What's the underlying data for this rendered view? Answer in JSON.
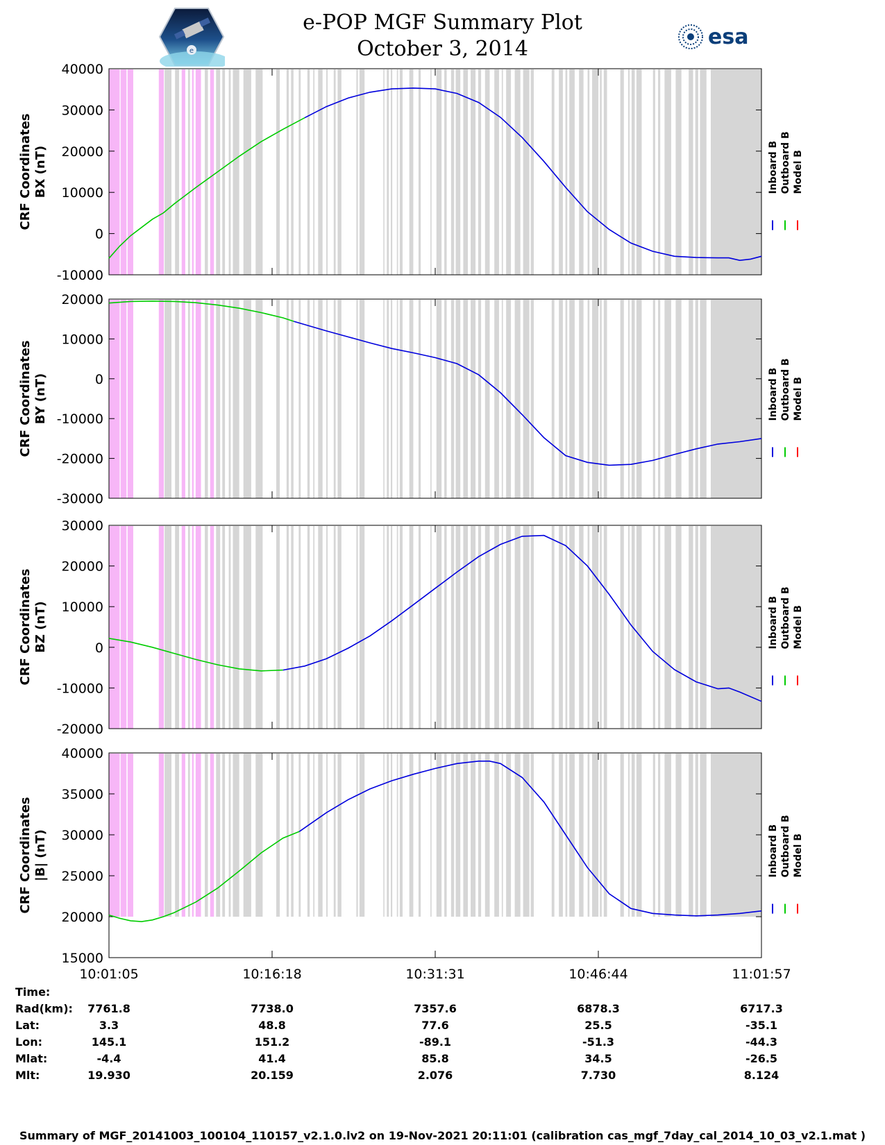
{
  "header": {
    "title_line1": "e-POP MGF Summary Plot",
    "title_line2": "October 3, 2014",
    "left_logo": "epop-cassiope-satellite-logo",
    "right_logo": "esa-logo",
    "right_logo_text": "esa"
  },
  "colors": {
    "inboard": "#0000dd",
    "outboard": "#00cc00",
    "model": "#ff0000",
    "magenta_band": "#f7b6f7",
    "gray_band": "#d6d6d6"
  },
  "chart_data": [
    {
      "type": "line",
      "id": "bx",
      "ylabel": [
        "CRF Coordinates",
        "BX (nT)"
      ],
      "ylim": [
        -10000,
        40000
      ],
      "yticks": [
        -10000,
        0,
        10000,
        20000,
        30000,
        40000
      ],
      "legend": [
        "Inboard B",
        "Outboard B",
        "Model B"
      ],
      "xlim_minutes": [
        0,
        60
      ],
      "series": [
        {
          "name": "Outboard B",
          "x": [
            0,
            1,
            2,
            3,
            4,
            5,
            6,
            8,
            10,
            12,
            14,
            16,
            18
          ],
          "values": [
            -6000,
            -3000,
            -500,
            1500,
            3500,
            5000,
            7200,
            11200,
            15000,
            18800,
            22300,
            25300,
            28100
          ]
        },
        {
          "name": "Inboard B",
          "x": [
            18,
            20,
            22,
            24,
            26,
            28,
            30,
            32,
            34,
            36,
            38,
            40,
            42,
            44,
            46,
            48,
            50,
            52,
            54,
            56,
            57,
            58,
            59,
            60
          ],
          "values": [
            28100,
            30800,
            32900,
            34300,
            35100,
            35300,
            35100,
            34000,
            31800,
            28200,
            23300,
            17500,
            11200,
            5300,
            1000,
            -2300,
            -4300,
            -5500,
            -5800,
            -5900,
            -5900,
            -6500,
            -6200,
            -5500
          ]
        }
      ]
    },
    {
      "type": "line",
      "id": "by",
      "ylabel": [
        "CRF Coordinates",
        "BY (nT)"
      ],
      "ylim": [
        -30000,
        20000
      ],
      "yticks": [
        -30000,
        -20000,
        -10000,
        0,
        10000,
        20000
      ],
      "legend": [
        "Inboard B",
        "Outboard B",
        "Model B"
      ],
      "xlim_minutes": [
        0,
        60
      ],
      "series": [
        {
          "name": "Outboard B",
          "x": [
            0,
            2,
            4,
            6,
            8,
            10,
            12,
            14,
            16,
            17
          ],
          "values": [
            19000,
            19400,
            19500,
            19400,
            19100,
            18500,
            17700,
            16600,
            15300,
            14400
          ]
        },
        {
          "name": "Inboard B",
          "x": [
            17,
            20,
            22,
            24,
            26,
            28,
            30,
            32,
            34,
            36,
            38,
            40,
            42,
            44,
            46,
            48,
            50,
            52,
            54,
            56,
            58,
            60
          ],
          "values": [
            14400,
            12000,
            10500,
            9000,
            7600,
            6500,
            5300,
            3800,
            1000,
            -3500,
            -9000,
            -14800,
            -19300,
            -21000,
            -21700,
            -21500,
            -20500,
            -19000,
            -17600,
            -16400,
            -15800,
            -15000
          ]
        }
      ]
    },
    {
      "type": "line",
      "id": "bz",
      "ylabel": [
        "CRF Coordinates",
        "BZ (nT)"
      ],
      "ylim": [
        -20000,
        30000
      ],
      "yticks": [
        -20000,
        -10000,
        0,
        10000,
        20000,
        30000
      ],
      "legend": [
        "Inboard B",
        "Outboard B",
        "Model B"
      ],
      "xlim_minutes": [
        0,
        60
      ],
      "series": [
        {
          "name": "Outboard B",
          "x": [
            0,
            2,
            4,
            6,
            8,
            10,
            12,
            14,
            16
          ],
          "values": [
            2200,
            1300,
            0,
            -1500,
            -3000,
            -4300,
            -5300,
            -5800,
            -5600
          ]
        },
        {
          "name": "Inboard B",
          "x": [
            16,
            18,
            20,
            22,
            24,
            26,
            28,
            30,
            32,
            34,
            36,
            38,
            40,
            42,
            44,
            46,
            48,
            50,
            52,
            54,
            56,
            57,
            58,
            60
          ],
          "values": [
            -5600,
            -4600,
            -2800,
            -200,
            2800,
            6500,
            10500,
            14500,
            18500,
            22300,
            25300,
            27300,
            27500,
            25000,
            20000,
            13000,
            5500,
            -1000,
            -5500,
            -8500,
            -10200,
            -10000,
            -11000,
            -13300
          ]
        }
      ]
    },
    {
      "type": "line",
      "id": "b-magnitude",
      "ylabel": [
        "CRF Coordinates",
        "|B| (nT)"
      ],
      "ylim": [
        15000,
        40000
      ],
      "yticks": [
        15000,
        20000,
        25000,
        30000,
        35000,
        40000
      ],
      "legend": [
        "Inboard B",
        "Outboard B",
        "Model B"
      ],
      "xlim_minutes": [
        0,
        60
      ],
      "series": [
        {
          "name": "Outboard B",
          "x": [
            0,
            1,
            2,
            3,
            4,
            5,
            6,
            8,
            10,
            12,
            14,
            16,
            17.5
          ],
          "values": [
            20200,
            19800,
            19500,
            19400,
            19600,
            20000,
            20500,
            21800,
            23500,
            25600,
            27800,
            29600,
            30400
          ]
        },
        {
          "name": "Inboard B",
          "x": [
            17.5,
            20,
            22,
            24,
            26,
            28,
            30,
            32,
            34,
            35,
            36,
            38,
            40,
            42,
            44,
            46,
            48,
            50,
            52,
            54,
            56,
            58,
            60
          ],
          "values": [
            30400,
            32700,
            34300,
            35600,
            36600,
            37400,
            38100,
            38700,
            39000,
            39000,
            38700,
            37000,
            34000,
            30000,
            26000,
            22800,
            21000,
            20400,
            20200,
            20100,
            20200,
            20400,
            20700
          ]
        }
      ]
    }
  ],
  "x_axis": {
    "ticks": [
      "10:01:05",
      "10:16:18",
      "10:31:31",
      "10:46:44",
      "11:01:57"
    ]
  },
  "ephemeris": {
    "labels": [
      "Time:",
      "Rad(km):",
      "Lat:",
      "Lon:",
      "Mlat:",
      "Mlt:"
    ],
    "columns": [
      [
        "10:01:05",
        "7761.8",
        "3.3",
        "145.1",
        "-4.4",
        "19.930"
      ],
      [
        "10:16:18",
        "7738.0",
        "48.8",
        "151.2",
        "41.4",
        "20.159"
      ],
      [
        "10:31:31",
        "7357.6",
        "77.6",
        "-89.1",
        "85.8",
        "2.076"
      ],
      [
        "10:46:44",
        "6878.3",
        "25.5",
        "-51.3",
        "34.5",
        "7.730"
      ],
      [
        "11:01:57",
        "6717.3",
        "-35.1",
        "-44.3",
        "-26.5",
        "8.124"
      ]
    ]
  },
  "footer": "Summary of MGF_20141003_100104_110157_v2.1.0.lv2 on 19-Nov-2021 20:11:01 (calibration cas_mgf_7day_cal_2014_10_03_v2.1.mat )"
}
